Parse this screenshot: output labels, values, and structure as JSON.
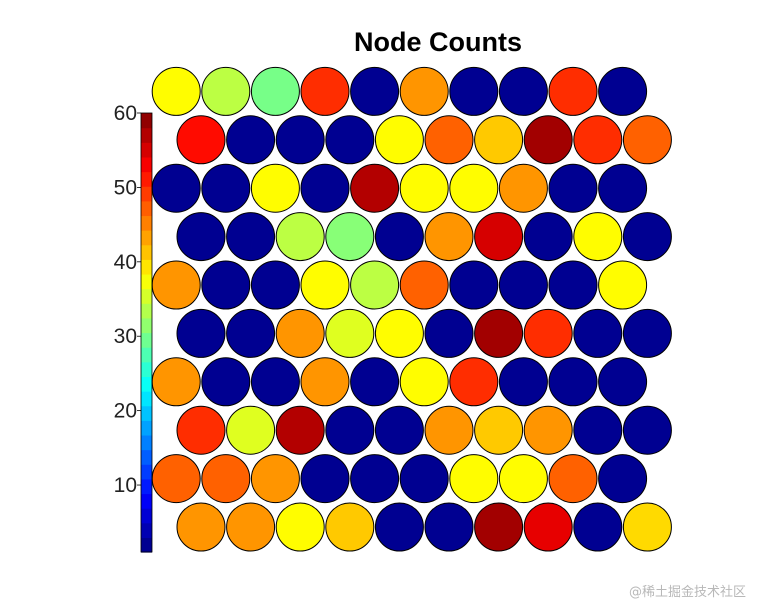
{
  "watermark": "@稀土掘金技术社区",
  "chart_data": {
    "type": "heatmap",
    "subtype": "som-hexagonal-node-counts",
    "title": "Node Counts",
    "xlabel": "",
    "ylabel": "",
    "colormap": "jet",
    "colorbar": {
      "range": [
        1,
        60
      ],
      "ticks": [
        10,
        20,
        30,
        40,
        50,
        60
      ],
      "tick_labels": [
        "10",
        "20",
        "30",
        "40",
        "50",
        "60"
      ],
      "segments": 30
    },
    "grid": {
      "rows": 10,
      "cols": 10,
      "layout": "hexagonal",
      "row_order": "bottom-to-top"
    },
    "values": [
      [
        44,
        44,
        38,
        41,
        2,
        2,
        58,
        54,
        2,
        40
      ],
      [
        47,
        47,
        44,
        2,
        2,
        2,
        38,
        38,
        47,
        2
      ],
      [
        50,
        36,
        57,
        2,
        2,
        44,
        41,
        44,
        2,
        2
      ],
      [
        44,
        2,
        2,
        44,
        2,
        38,
        50,
        2,
        2,
        2
      ],
      [
        2,
        2,
        44,
        36,
        38,
        2,
        58,
        50,
        2,
        2
      ],
      [
        44,
        2,
        2,
        38,
        34,
        47,
        2,
        2,
        2,
        38
      ],
      [
        2,
        2,
        34,
        31,
        2,
        44,
        55,
        2,
        38,
        2
      ],
      [
        2,
        2,
        38,
        2,
        57,
        38,
        38,
        44,
        2,
        2
      ],
      [
        52,
        2,
        2,
        2,
        38,
        47,
        41,
        58,
        50,
        47
      ],
      [
        38,
        34,
        30,
        50,
        2,
        44,
        2,
        2,
        50,
        2
      ]
    ]
  }
}
